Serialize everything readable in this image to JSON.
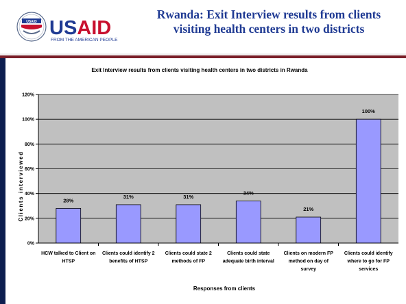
{
  "header": {
    "logo": {
      "brand_text": "USAID",
      "tagline": "FROM THE AMERICAN PEOPLE",
      "seal_text": "USAID"
    },
    "title_line1": "Rwanda: Exit Interview results from clients",
    "title_line2": "visiting health centers in two districts"
  },
  "colors": {
    "title": "#1f3a93",
    "usaid_blue": "#1f3a93",
    "usaid_red": "#c8102e",
    "maroon_rule": "#7a1e28",
    "left_bar": "#0d1e4f",
    "plot_background": "#c0c0c0",
    "bar_fill": "#9999ff"
  },
  "chart_data": {
    "type": "bar",
    "title": "Exit Interview results from clients visiting health centers in two districts in Rwanda",
    "xlabel": "Responses from clients",
    "ylabel": "Clients interviewed",
    "ylim": [
      0,
      120
    ],
    "yticks": [
      "0%",
      "20%",
      "40%",
      "60%",
      "80%",
      "100%",
      "120%"
    ],
    "grid": true,
    "legend": "none",
    "categories": [
      [
        "HCW talked to Client on",
        "HTSP"
      ],
      [
        "Clients could identify 2",
        "benefits of HTSP"
      ],
      [
        "Clients could state 2",
        "methods of FP"
      ],
      [
        "Clients  could state",
        "adequate birth interval"
      ],
      [
        "Clients on modern FP",
        "method on day of",
        "survey"
      ],
      [
        "Clients could identify",
        "where to go for FP",
        "services"
      ]
    ],
    "values": [
      28,
      31,
      31,
      34,
      21,
      100
    ],
    "data_labels": [
      "28%",
      "31%",
      "31%",
      "34%",
      "21%",
      "100%"
    ]
  }
}
